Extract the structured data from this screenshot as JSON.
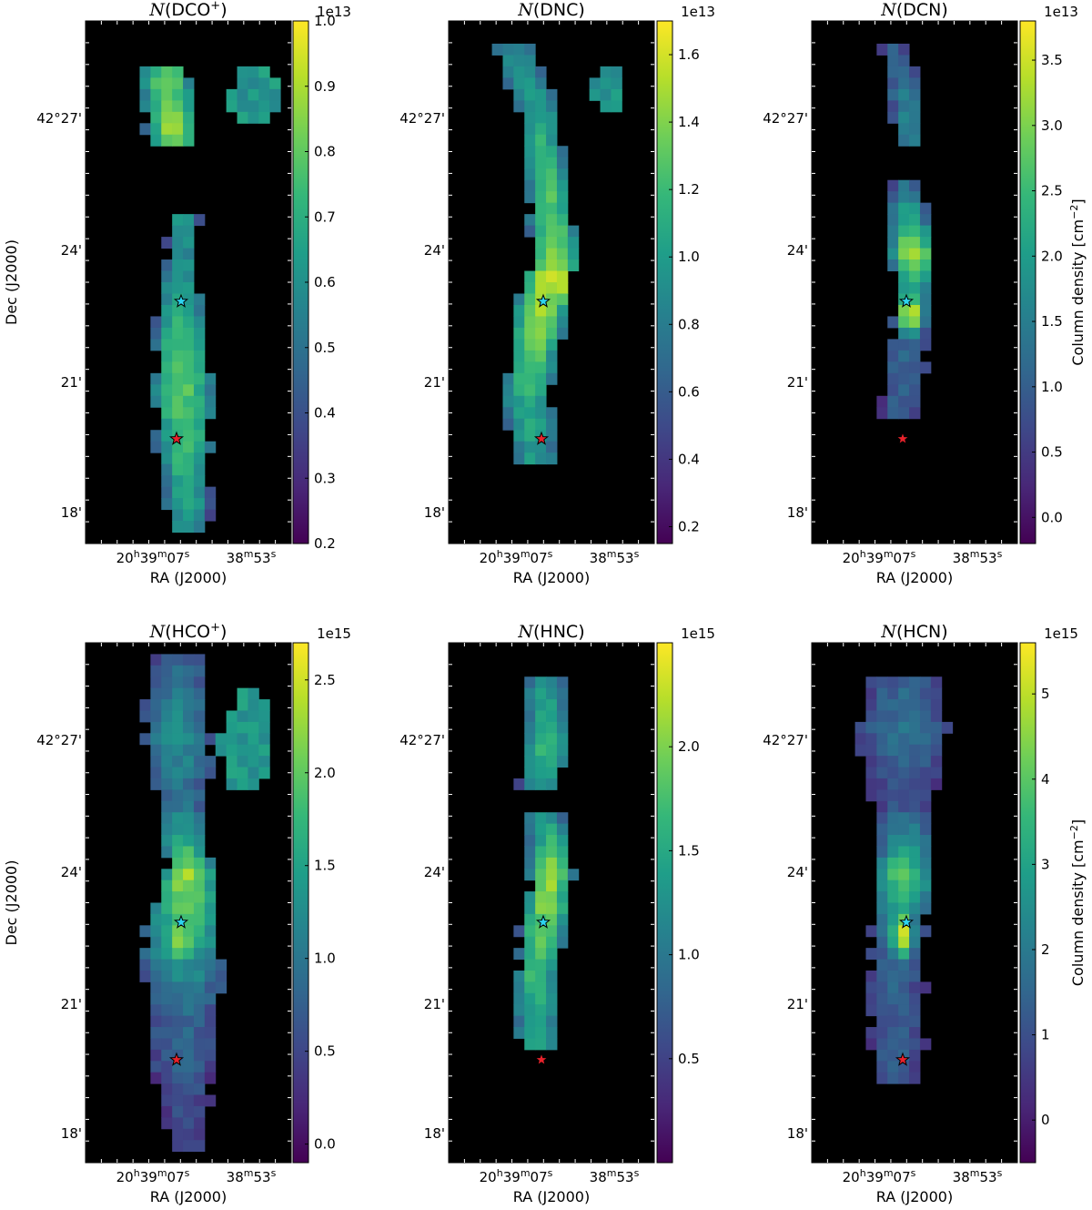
{
  "figure": {
    "ra_ticks": [
      {
        "h": "20",
        "m": "39",
        "s": "07",
        "label_parts": [
          "20",
          "h",
          "39",
          "m",
          "07",
          "s"
        ]
      },
      {
        "label_parts": [
          "38",
          "m",
          "53",
          "s"
        ]
      }
    ],
    "dec_ticks": [
      "42°27'",
      "24'",
      "21'",
      "18'"
    ],
    "xlabel": "RA (J2000)",
    "ylabel": "Dec (J2000)",
    "colorbar_label": "Column density [cm",
    "colorbar_label_sup": "−2",
    "colorbar_label_end": "]",
    "colormap": "viridis",
    "colormap_stops": [
      "#440154",
      "#482878",
      "#3e4989",
      "#31688e",
      "#26828e",
      "#1f9e89",
      "#35b779",
      "#6ece58",
      "#b5de2b",
      "#fde725"
    ],
    "background": "#000000",
    "marker_colors": {
      "cyan_star": "#2dd4f0",
      "red_star": "#e8222b"
    }
  },
  "chart_data": [
    {
      "type": "heatmap",
      "title_italic": "N",
      "title_rest": "(DCO",
      "title_sup": "+",
      "title_end": ")",
      "multiplier": "1e13",
      "clim": [
        0.2,
        1.0
      ],
      "cbar_ticks": [
        "0.2",
        "0.3",
        "0.4",
        "0.5",
        "0.6",
        "0.7",
        "0.8",
        "0.9",
        "1.0"
      ],
      "cbar_tick_values": [
        0.2,
        0.3,
        0.4,
        0.5,
        0.6,
        0.7,
        0.8,
        0.9,
        1.0
      ],
      "peak_value": 1.0,
      "markers": [
        "cyan_star",
        "red_star"
      ]
    },
    {
      "type": "heatmap",
      "title_italic": "N",
      "title_rest": "(DNC)",
      "title_sup": "",
      "title_end": "",
      "multiplier": "1e13",
      "clim": [
        0.15,
        1.7
      ],
      "cbar_ticks": [
        "0.2",
        "0.4",
        "0.6",
        "0.8",
        "1.0",
        "1.2",
        "1.4",
        "1.6"
      ],
      "cbar_tick_values": [
        0.2,
        0.4,
        0.6,
        0.8,
        1.0,
        1.2,
        1.4,
        1.6
      ],
      "peak_value": 1.7,
      "markers": [
        "cyan_star",
        "red_star"
      ]
    },
    {
      "type": "heatmap",
      "title_italic": "N",
      "title_rest": "(DCN)",
      "title_sup": "",
      "title_end": "",
      "multiplier": "1e13",
      "clim": [
        -0.2,
        3.8
      ],
      "cbar_ticks": [
        "0.0",
        "0.5",
        "1.0",
        "1.5",
        "2.0",
        "2.5",
        "3.0",
        "3.5"
      ],
      "cbar_tick_values": [
        0.0,
        0.5,
        1.0,
        1.5,
        2.0,
        2.5,
        3.0,
        3.5
      ],
      "peak_value": 3.8,
      "markers": [
        "cyan_star",
        "red_star"
      ]
    },
    {
      "type": "heatmap",
      "title_italic": "N",
      "title_rest": "(HCO",
      "title_sup": "+",
      "title_end": ")",
      "multiplier": "1e15",
      "clim": [
        -0.1,
        2.7
      ],
      "cbar_ticks": [
        "0.0",
        "0.5",
        "1.0",
        "1.5",
        "2.0",
        "2.5"
      ],
      "cbar_tick_values": [
        0.0,
        0.5,
        1.0,
        1.5,
        2.0,
        2.5
      ],
      "peak_value": 2.7,
      "markers": [
        "cyan_star",
        "red_star"
      ]
    },
    {
      "type": "heatmap",
      "title_italic": "N",
      "title_rest": "(HNC)",
      "title_sup": "",
      "title_end": "",
      "multiplier": "1e15",
      "clim": [
        0.0,
        2.5
      ],
      "cbar_ticks": [
        "0.5",
        "1.0",
        "1.5",
        "2.0"
      ],
      "cbar_tick_values": [
        0.5,
        1.0,
        1.5,
        2.0
      ],
      "peak_value": 2.5,
      "markers": [
        "cyan_star",
        "red_star"
      ]
    },
    {
      "type": "heatmap",
      "title_italic": "N",
      "title_rest": "(HCN)",
      "title_sup": "",
      "title_end": "",
      "multiplier": "1e15",
      "clim": [
        -0.5,
        5.6
      ],
      "cbar_ticks": [
        "0",
        "1",
        "2",
        "3",
        "4",
        "5"
      ],
      "cbar_tick_values": [
        0,
        1,
        2,
        3,
        4,
        5
      ],
      "peak_value": 5.6,
      "markers": [
        "cyan_star",
        "red_star"
      ]
    }
  ]
}
